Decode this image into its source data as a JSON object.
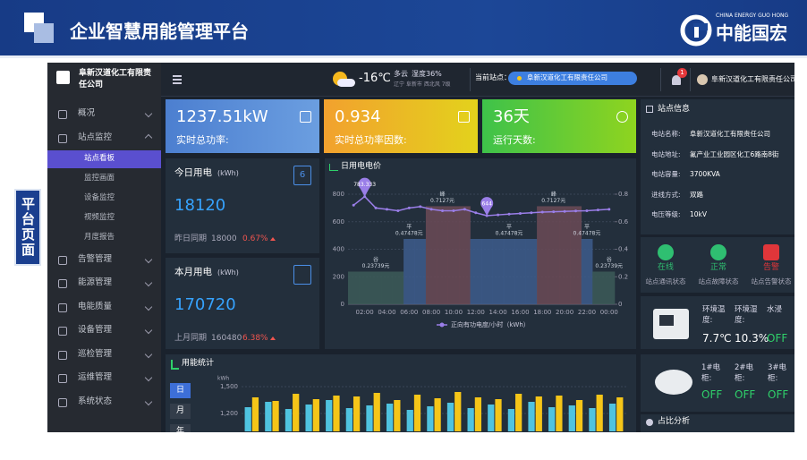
{
  "header": {
    "title": "企业智慧用能管理平台",
    "logo_text": "中能国宏",
    "logo_subtitle": "CHINA ENERGY GUO HONG"
  },
  "side_label": "平台页面",
  "app": {
    "sidebar": {
      "company": "阜新汉道化工有限责任公司",
      "menu": [
        {
          "label": "概况"
        },
        {
          "label": "站点监控",
          "children": [
            "站点看板",
            "监控画面",
            "设备监控",
            "视频监控",
            "月度报告"
          ]
        },
        {
          "label": "告警管理"
        },
        {
          "label": "能源管理"
        },
        {
          "label": "电能质量"
        },
        {
          "label": "设备管理"
        },
        {
          "label": "巡检管理"
        },
        {
          "label": "运维管理"
        },
        {
          "label": "系统状态"
        }
      ]
    },
    "topbar": {
      "temperature": "-16℃",
      "weather": "多云",
      "humidity": "湿度36%",
      "location": "辽宁 阜新市 西北风 7级",
      "site_label": "当前站点：",
      "site": "阜新汉道化工有限责任公司",
      "notifications": "1",
      "user": "阜新汉道化工有限责任公司"
    },
    "kpis": [
      {
        "value": "1237.51kW",
        "label": "实时总功率:"
      },
      {
        "value": "0.934",
        "label": "实时总功率因数:"
      },
      {
        "value": "36天",
        "label": "运行天数:"
      }
    ],
    "today": {
      "title": "今日用电",
      "unit": "(kWh)",
      "icon": "6",
      "value": "18120",
      "compare_label": "昨日同期",
      "compare_value": "18000",
      "change": "0.67%"
    },
    "month": {
      "title": "本月用电",
      "unit": "(kWh)",
      "value": "170720",
      "compare_label": "上月同期",
      "compare_value": "160480",
      "change": "6.38%"
    },
    "station_info": {
      "title": "站点信息",
      "fields": [
        {
          "label": "电站名称:",
          "value": "阜新汉道化工有限责任公司"
        },
        {
          "label": "电站地址:",
          "value": "氟产业工业园区化工6路南8街"
        },
        {
          "label": "电站容量:",
          "value": "3700KVA"
        },
        {
          "label": "进线方式:",
          "value": "双路"
        },
        {
          "label": "电压等级:",
          "value": "10kV"
        }
      ]
    },
    "status": [
      {
        "state": "在线",
        "label": "站点通讯状态"
      },
      {
        "state": "正常",
        "label": "站点故障状态"
      },
      {
        "state": "告警",
        "label": "站点告警状态"
      }
    ],
    "environment": [
      {
        "label": "环境温度:",
        "value": "7.7℃"
      },
      {
        "label": "环境湿度:",
        "value": "10.3%"
      },
      {
        "label": "水浸",
        "value": "OFF"
      }
    ],
    "smoke": [
      {
        "label": "1#电柜:",
        "value": "OFF"
      },
      {
        "label": "2#电柜:",
        "value": "OFF"
      },
      {
        "label": "3#电柜:",
        "value": "OFF"
      }
    ],
    "ratio_title": "占比分析"
  },
  "chart_data": [
    {
      "type": "combo",
      "title": "日用电电价",
      "categories": [
        null,
        "02:00",
        null,
        "04:00",
        null,
        "06:00",
        null,
        "08:00",
        null,
        "10:00",
        null,
        "12:00",
        null,
        "14:00",
        null,
        "16:00",
        null,
        "18:00",
        null,
        "20:00",
        null,
        "22:00",
        null,
        "00:00"
      ],
      "series": [
        {
          "type": "bar",
          "axis": "y2",
          "values": [
            0.23739,
            0.23739,
            0.23739,
            0.23739,
            0.23739,
            0.47478,
            0.47478,
            0.7127,
            0.7127,
            0.7127,
            0.7127,
            0.47478,
            0.47478,
            0.47478,
            0.47478,
            0.47478,
            0.47478,
            0.7127,
            0.7127,
            0.7127,
            0.7127,
            0.47478,
            0.23739,
            0.23739
          ],
          "value_labels": [
            null,
            null,
            "0.23739元",
            null,
            null,
            "0.47478元",
            null,
            null,
            "0.7127元",
            null,
            null,
            null,
            null,
            null,
            "0.47478元",
            null,
            null,
            null,
            "0.7127元",
            null,
            null,
            "0.47478元",
            null,
            "0.23739元"
          ],
          "tier_labels": [
            null,
            null,
            "谷",
            null,
            null,
            "平",
            null,
            null,
            "峰",
            null,
            null,
            null,
            null,
            null,
            "平",
            null,
            null,
            null,
            "峰",
            null,
            null,
            "平",
            null,
            "谷"
          ],
          "colors": [
            "#3c5a58",
            "#3c5a58",
            "#3c5a58",
            "#3c5a58",
            "#3c5a58",
            "#3d5c8c",
            "#3d5c8c",
            "#6b4a56",
            "#6b4a56",
            "#6b4a56",
            "#6b4a56",
            "#3d5c8c",
            "#3d5c8c",
            "#3d5c8c",
            "#3d5c8c",
            "#3d5c8c",
            "#3d5c8c",
            "#6b4a56",
            "#6b4a56",
            "#6b4a56",
            "#6b4a56",
            "#3d5c8c",
            "#3c5a58",
            "#3c5a58"
          ]
        },
        {
          "type": "line",
          "name": "正向有功电度/小时（kWh）",
          "color": "#9a7ee8",
          "values": [
            720,
            783.333,
            700,
            690,
            680,
            700,
            710,
            690,
            680,
            680,
            690,
            665,
            644,
            650,
            655,
            660,
            665,
            670,
            672,
            675,
            678,
            680,
            685,
            690
          ]
        }
      ],
      "ylim": [
        0,
        800
      ],
      "yticks": [
        0,
        200,
        400,
        600,
        800
      ],
      "y2lim": [
        0,
        0.8
      ],
      "y2ticks": [
        0,
        0.2,
        0.4,
        0.6,
        0.8
      ],
      "grid": true
    },
    {
      "type": "bar",
      "title": "用能统计",
      "y_label": "kWh",
      "buttons": [
        "日",
        "月",
        "年"
      ],
      "categories": [
        null,
        null,
        null,
        null,
        null,
        null,
        null,
        null,
        null,
        null,
        null,
        null,
        null,
        null,
        null,
        null,
        null,
        null,
        null
      ],
      "series": [
        {
          "color": "#4fc3e0",
          "values": [
            1270,
            1330,
            1250,
            1300,
            1350,
            1260,
            1290,
            1310,
            1240,
            1280,
            1320,
            1260,
            1300,
            1250,
            1330,
            1270,
            1290,
            1260,
            1310
          ]
        },
        {
          "color": "#f5c518",
          "values": [
            1380,
            1340,
            1420,
            1360,
            1400,
            1390,
            1430,
            1350,
            1410,
            1370,
            1440,
            1380,
            1360,
            1420,
            1390,
            1400,
            1350,
            1410,
            1380
          ]
        }
      ],
      "ylim": [
        1000,
        1500
      ],
      "yticks": [
        {
          "value": 1200,
          "label": "1,200"
        },
        {
          "value": 1500,
          "label": "1,500"
        }
      ],
      "grid": true
    }
  ]
}
